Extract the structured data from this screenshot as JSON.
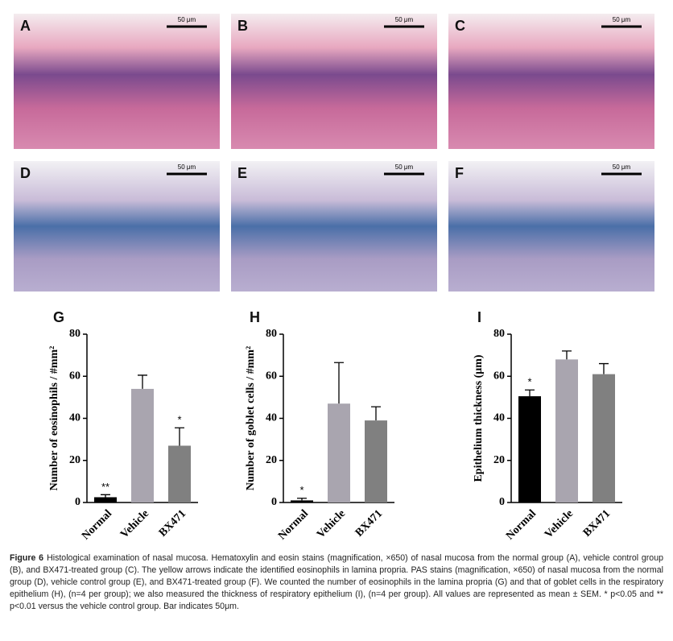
{
  "panels": [
    {
      "label": "A",
      "scale": "50 μm"
    },
    {
      "label": "B",
      "scale": "50 μm"
    },
    {
      "label": "C",
      "scale": "50 μm"
    },
    {
      "label": "D",
      "scale": "50 μm"
    },
    {
      "label": "E",
      "scale": "50 μm"
    },
    {
      "label": "F",
      "scale": "50 μm"
    }
  ],
  "chart_data": [
    {
      "type": "bar",
      "panel_label": "G",
      "ylabel": "Number of eosinophils / #mm²",
      "categories": [
        "Normal",
        "Vehicle",
        "BX471"
      ],
      "values": [
        2.5,
        54,
        27
      ],
      "errors": [
        1.2,
        6.5,
        8.5
      ],
      "significance": [
        "**",
        null,
        "*"
      ],
      "colors": [
        "#000000",
        "#a9a5af",
        "#808080"
      ],
      "ylim": [
        0,
        80
      ],
      "yticks": [
        0,
        20,
        40,
        60,
        80
      ]
    },
    {
      "type": "bar",
      "panel_label": "H",
      "ylabel": "Number of goblet cells / #mm²",
      "categories": [
        "Normal",
        "Vehicle",
        "BX471"
      ],
      "values": [
        1,
        47,
        39
      ],
      "errors": [
        1,
        19.5,
        6.5
      ],
      "significance": [
        "*",
        null,
        null
      ],
      "colors": [
        "#000000",
        "#a9a5af",
        "#808080"
      ],
      "ylim": [
        0,
        80
      ],
      "yticks": [
        0,
        20,
        40,
        60,
        80
      ]
    },
    {
      "type": "bar",
      "panel_label": "I",
      "ylabel": "Epithelium thickness (μm)",
      "categories": [
        "Normal",
        "Vehicle",
        "BX471"
      ],
      "values": [
        50.5,
        68,
        61
      ],
      "errors": [
        3,
        4,
        5
      ],
      "significance": [
        "*",
        null,
        null
      ],
      "colors": [
        "#000000",
        "#a9a5af",
        "#808080"
      ],
      "ylim": [
        0,
        80
      ],
      "yticks": [
        0,
        20,
        40,
        60,
        80
      ]
    }
  ],
  "caption": {
    "label": "Figure 6",
    "text": "Histological examination of nasal mucosa. Hematoxylin and eosin stains (magnification, ×650) of nasal mucosa from the normal group (A), vehicle control group (B), and BX471-treated group (C). The yellow arrows indicate the identified eosinophils in lamina propria. PAS stains (magnification, ×650) of nasal mucosa from the normal group (D), vehicle control group (E), and BX471-treated group (F). We counted the number of eosinophils in the lamina propria (G) and that of goblet cells in the respiratory epithelium (H), (n=4 per group); we also measured the thickness of respiratory epithelium (I), (n=4 per group). All values are represented as mean ± SEM. * p<0.05 and ** p<0.01 versus the vehicle control group. Bar indicates 50μm."
  }
}
